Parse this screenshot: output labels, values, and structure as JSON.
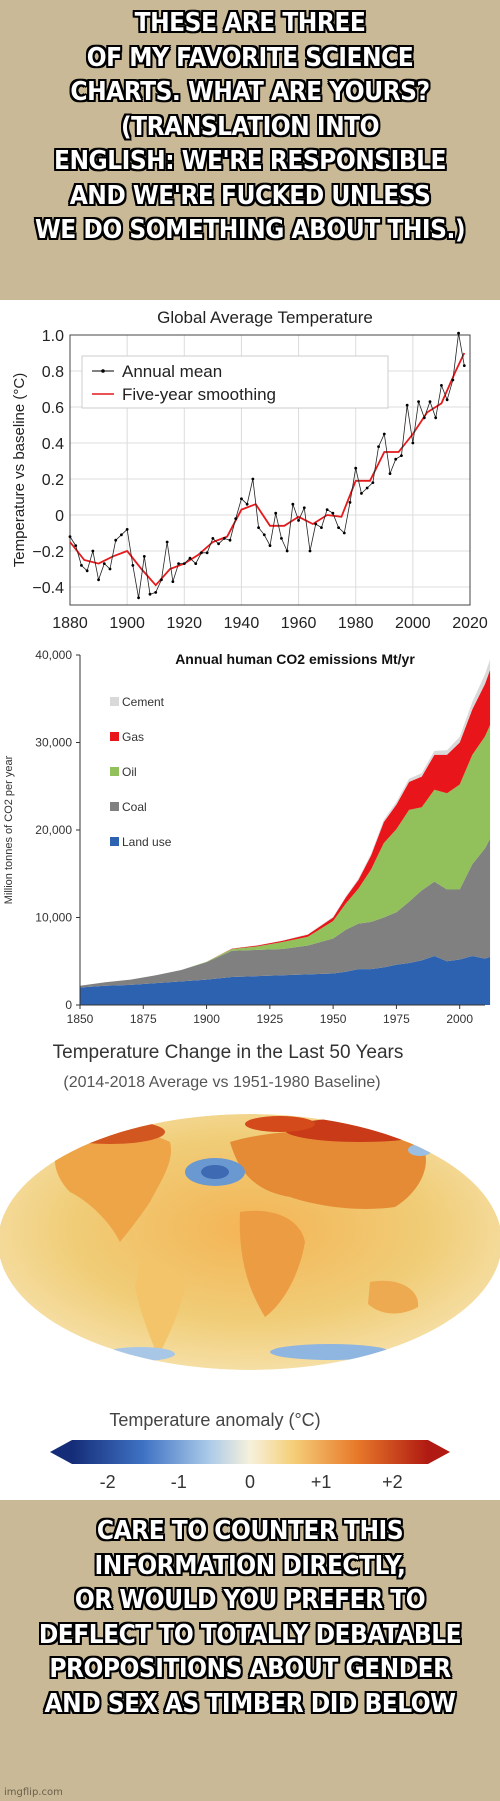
{
  "top_caption": [
    "These are three",
    "of my favorite science",
    "charts. What are yours?",
    "(Translation into",
    "English: we're responsible",
    "and we're fucked unless",
    "we do something about this.)"
  ],
  "bottom_caption": [
    "Care to counter this",
    "information directly,",
    "or would you prefer to",
    "deflect to totally debatable",
    "propositions about gender",
    "and sex as Timber did below"
  ],
  "watermark": "imgflip.com",
  "chart_data": [
    {
      "type": "line",
      "title": "Global Average Temperature",
      "ylabel": "Temperature vs baseline (°C)",
      "xlabel": "",
      "xlim": [
        1880,
        2020
      ],
      "ylim": [
        -0.5,
        1.0
      ],
      "xticks": [
        "1880",
        "1900",
        "1920",
        "1940",
        "1960",
        "1980",
        "2000",
        "2020"
      ],
      "yticks": [
        "−0.4",
        "−0.2",
        "0",
        "0.2",
        "0.4",
        "0.6",
        "0.8",
        "1.0"
      ],
      "grid": true,
      "legend_position": "top-left",
      "series": [
        {
          "name": "Annual mean",
          "color": "#000000",
          "x": [
            1880,
            1882,
            1884,
            1886,
            1888,
            1890,
            1892,
            1894,
            1896,
            1898,
            1900,
            1902,
            1904,
            1906,
            1908,
            1910,
            1912,
            1914,
            1916,
            1918,
            1920,
            1922,
            1924,
            1926,
            1928,
            1930,
            1932,
            1934,
            1936,
            1938,
            1940,
            1942,
            1944,
            1946,
            1948,
            1950,
            1952,
            1954,
            1956,
            1958,
            1960,
            1962,
            1964,
            1966,
            1968,
            1970,
            1972,
            1974,
            1976,
            1978,
            1980,
            1982,
            1984,
            1986,
            1988,
            1990,
            1992,
            1994,
            1996,
            1998,
            2000,
            2002,
            2004,
            2006,
            2008,
            2010,
            2012,
            2014,
            2016,
            2018
          ],
          "y": [
            -0.12,
            -0.17,
            -0.28,
            -0.31,
            -0.2,
            -0.36,
            -0.27,
            -0.3,
            -0.14,
            -0.11,
            -0.08,
            -0.28,
            -0.46,
            -0.23,
            -0.44,
            -0.43,
            -0.36,
            -0.15,
            -0.37,
            -0.27,
            -0.27,
            -0.24,
            -0.27,
            -0.21,
            -0.21,
            -0.13,
            -0.16,
            -0.13,
            -0.14,
            -0.02,
            0.09,
            0.06,
            0.2,
            -0.07,
            -0.11,
            -0.17,
            0.01,
            -0.13,
            -0.2,
            0.06,
            -0.03,
            0.04,
            -0.2,
            -0.05,
            -0.07,
            0.03,
            0.01,
            -0.07,
            -0.1,
            0.07,
            0.26,
            0.12,
            0.15,
            0.18,
            0.38,
            0.45,
            0.23,
            0.31,
            0.33,
            0.61,
            0.4,
            0.63,
            0.54,
            0.63,
            0.54,
            0.72,
            0.64,
            0.75,
            1.01,
            0.83
          ]
        },
        {
          "name": "Five-year smoothing",
          "color": "#e41a1c",
          "x": [
            1880,
            1885,
            1890,
            1895,
            1900,
            1905,
            1910,
            1915,
            1920,
            1925,
            1930,
            1935,
            1940,
            1945,
            1950,
            1955,
            1960,
            1965,
            1970,
            1975,
            1980,
            1985,
            1990,
            1995,
            2000,
            2005,
            2010,
            2015,
            2018
          ],
          "y": [
            -0.15,
            -0.25,
            -0.27,
            -0.23,
            -0.2,
            -0.3,
            -0.39,
            -0.3,
            -0.27,
            -0.22,
            -0.15,
            -0.12,
            0.03,
            0.06,
            -0.06,
            -0.06,
            -0.01,
            -0.05,
            0.0,
            -0.01,
            0.19,
            0.19,
            0.35,
            0.35,
            0.45,
            0.57,
            0.62,
            0.8,
            0.9
          ]
        }
      ]
    },
    {
      "type": "area",
      "title": "Annual human CO2 emissions  Mt/yr",
      "ylabel": "Million tonnes of CO2 per year",
      "xlabel": "",
      "xlim": [
        1850,
        2010
      ],
      "ylim": [
        0,
        40000
      ],
      "xticks": [
        "1850",
        "1875",
        "1900",
        "1925",
        "1950",
        "1975",
        "2000"
      ],
      "yticks": [
        "0",
        "10,000",
        "20,000",
        "30,000",
        "40,000"
      ],
      "stacked": true,
      "legend_position": "top-left",
      "legend_order": [
        "Cement",
        "Gas",
        "Oil",
        "Coal",
        "Land use"
      ],
      "x": [
        1850,
        1860,
        1870,
        1880,
        1890,
        1900,
        1910,
        1920,
        1930,
        1940,
        1950,
        1955,
        1960,
        1965,
        1970,
        1975,
        1980,
        1985,
        1990,
        1995,
        2000,
        2005,
        2010,
        2012
      ],
      "series": [
        {
          "name": "Land use",
          "color": "#2d62b0",
          "values": [
            2000,
            2200,
            2300,
            2500,
            2700,
            2900,
            3200,
            3300,
            3400,
            3500,
            3600,
            3800,
            4100,
            4100,
            4300,
            4600,
            4800,
            5100,
            5600,
            5000,
            5200,
            5600,
            5300,
            5500
          ]
        },
        {
          "name": "Coal",
          "color": "#808080",
          "values": [
            200,
            400,
            600,
            900,
            1300,
            2000,
            3000,
            3000,
            3000,
            3300,
            4000,
            4800,
            5200,
            5400,
            5700,
            6000,
            7000,
            8000,
            8500,
            8200,
            8000,
            10500,
            12600,
            13500
          ]
        },
        {
          "name": "Oil",
          "color": "#92c05a",
          "values": [
            0,
            0,
            0,
            0,
            0,
            50,
            200,
            400,
            800,
            1000,
            2000,
            3000,
            4000,
            6000,
            8500,
            9500,
            10500,
            9500,
            10500,
            11000,
            12000,
            12500,
            12800,
            13000
          ]
        },
        {
          "name": "Gas",
          "color": "#e8151a",
          "values": [
            0,
            0,
            0,
            0,
            0,
            0,
            50,
            100,
            150,
            250,
            400,
            700,
            1000,
            1600,
            2400,
            2800,
            3200,
            3500,
            4000,
            4400,
            4800,
            5200,
            6000,
            6300
          ]
        },
        {
          "name": "Cement",
          "color": "#d9d9d9",
          "values": [
            0,
            0,
            0,
            0,
            0,
            0,
            10,
            20,
            40,
            50,
            80,
            120,
            160,
            200,
            260,
            320,
            360,
            400,
            450,
            520,
            650,
            850,
            1100,
            1200
          ]
        }
      ]
    },
    {
      "type": "heatmap",
      "title": "Temperature Change in the Last 50 Years",
      "subtitle": "(2014-2018 Average vs 1951-1980 Baseline)",
      "colorbar_label": "Temperature anomaly (°C)",
      "colorbar_range": [
        -2,
        2
      ],
      "colorbar_ticks": [
        "-2",
        "-1",
        "0",
        "+1",
        "+2"
      ],
      "colors": {
        "cold": "#1a3d8f",
        "neutral": "#f3ecd4",
        "warm": "#c21d10"
      }
    }
  ]
}
